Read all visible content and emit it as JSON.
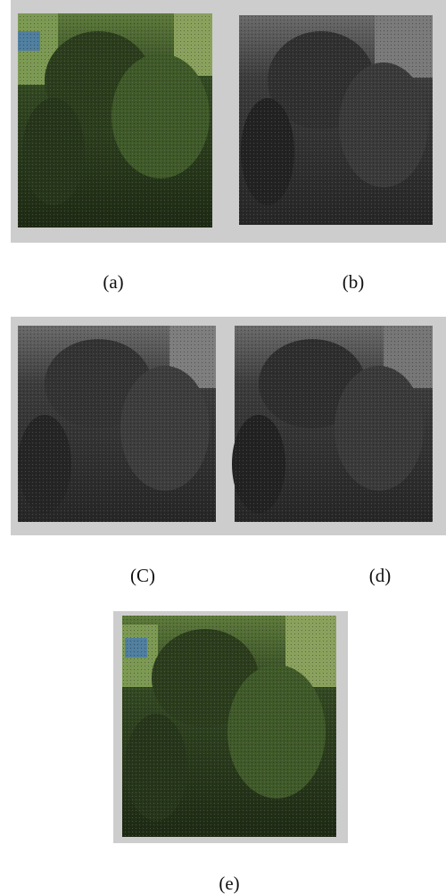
{
  "labels": [
    "(a)",
    "(b)",
    "(C)",
    "(d)",
    "(e)"
  ]
}
